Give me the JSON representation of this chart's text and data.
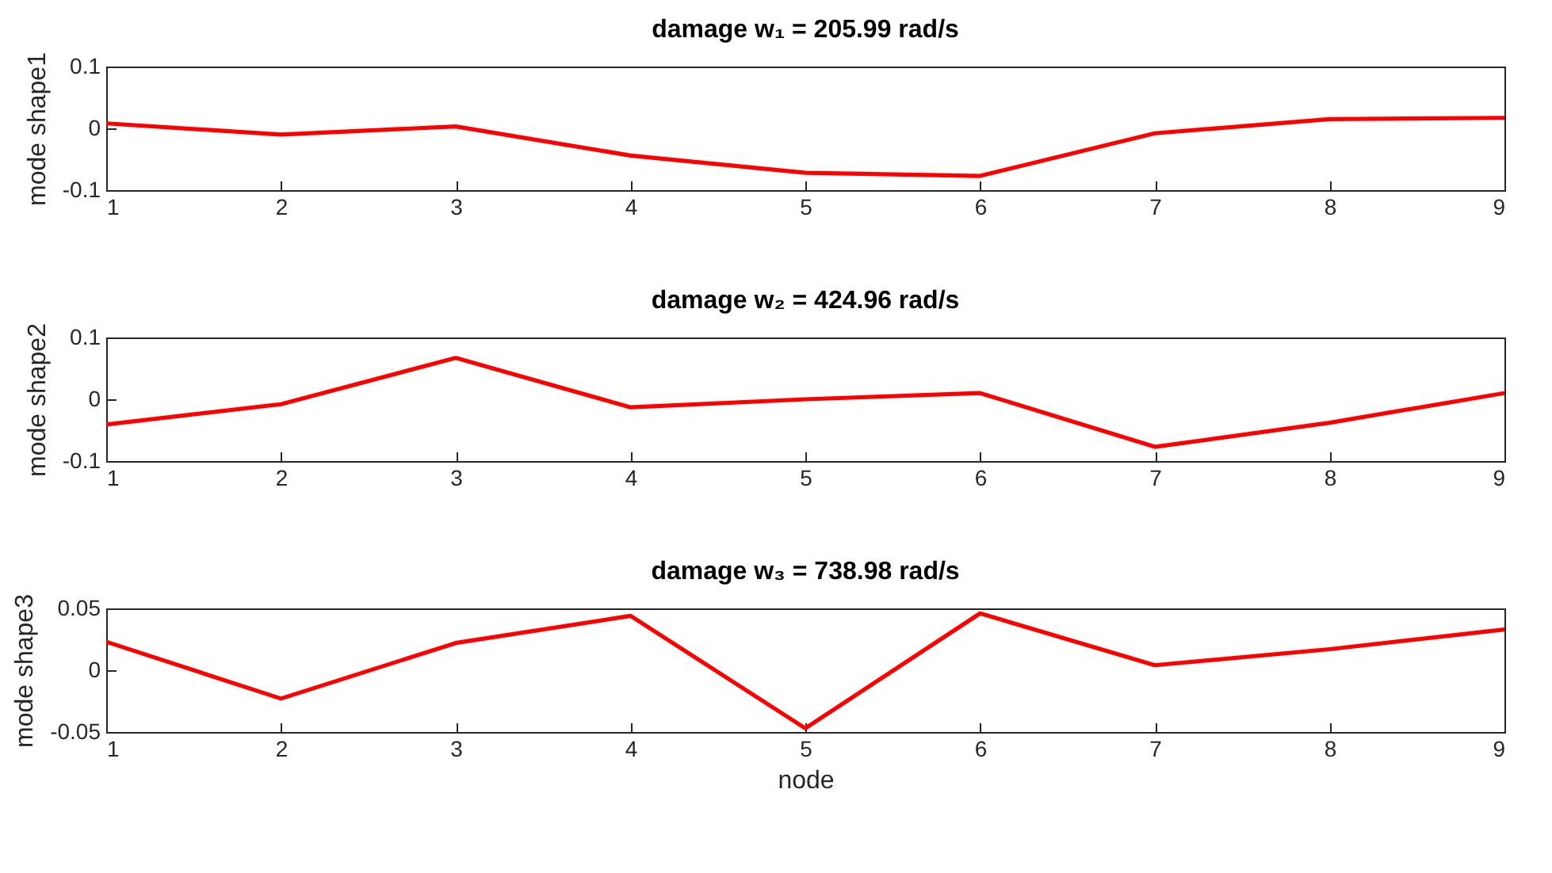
{
  "chart_data": [
    {
      "type": "line",
      "title": "damage w₁ = 205.99 rad/s",
      "ylabel": "mode shape1",
      "x": [
        1,
        2,
        3,
        4,
        5,
        6,
        7,
        8,
        9
      ],
      "xlim": [
        1,
        9
      ],
      "xticks": [
        1,
        2,
        3,
        4,
        5,
        6,
        7,
        8,
        9
      ],
      "ylim": [
        -0.1,
        0.1
      ],
      "yticks": [
        -0.1,
        0,
        0.1
      ],
      "grid": false,
      "series": [
        {
          "color": "#ff0000",
          "values": [
            0.008,
            -0.01,
            0.003,
            -0.044,
            -0.072,
            -0.077,
            -0.008,
            0.015,
            0.017
          ]
        }
      ]
    },
    {
      "type": "line",
      "title": "damage w₂ = 424.96 rad/s",
      "ylabel": "mode shape2",
      "x": [
        1,
        2,
        3,
        4,
        5,
        6,
        7,
        8,
        9
      ],
      "xlim": [
        1,
        9
      ],
      "xticks": [
        1,
        2,
        3,
        4,
        5,
        6,
        7,
        8,
        9
      ],
      "ylim": [
        -0.1,
        0.1
      ],
      "yticks": [
        -0.1,
        0,
        0.1
      ],
      "grid": false,
      "series": [
        {
          "color": "#ff0000",
          "values": [
            -0.041,
            -0.008,
            0.067,
            -0.013,
            0,
            0.01,
            -0.077,
            -0.038,
            0.01
          ]
        }
      ]
    },
    {
      "type": "line",
      "title": "damage w₃ = 738.98 rad/s",
      "xlabel": "node",
      "ylabel": "mode shape3",
      "x": [
        1,
        2,
        3,
        4,
        5,
        6,
        7,
        8,
        9
      ],
      "xlim": [
        1,
        9
      ],
      "xticks": [
        1,
        2,
        3,
        4,
        5,
        6,
        7,
        8,
        9
      ],
      "ylim": [
        -0.05,
        0.05
      ],
      "yticks": [
        -0.05,
        0,
        0.05
      ],
      "grid": false,
      "series": [
        {
          "color": "#ff0000",
          "values": [
            0.023,
            -0.023,
            0.022,
            0.044,
            -0.047,
            0.046,
            0.004,
            0.017,
            0.033
          ]
        }
      ]
    }
  ]
}
